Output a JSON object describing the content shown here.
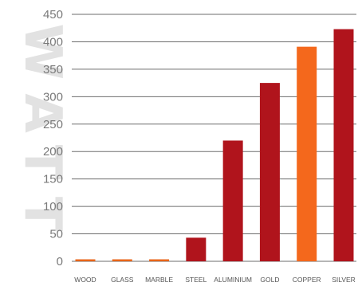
{
  "chart_data": {
    "type": "bar",
    "categories": [
      "WOOD",
      "GLASS",
      "MARBLE",
      "STEEL",
      "ALUMINIUM",
      "GOLD",
      "COPPER",
      "SILVER"
    ],
    "values": [
      1,
      1,
      1,
      43,
      220,
      325,
      391,
      423
    ],
    "ylim": [
      0,
      450
    ],
    "yticks": [
      0,
      50,
      100,
      150,
      200,
      250,
      300,
      350,
      400,
      450
    ],
    "grid": true,
    "bar_colors": [
      "#e8661a",
      "#e8661a",
      "#e8661a",
      "#b0141c",
      "#b0141c",
      "#b0141c",
      "#f4681c",
      "#b0141c"
    ]
  },
  "watermark": {
    "text": "WATT",
    "color": "#e2e2e2"
  }
}
